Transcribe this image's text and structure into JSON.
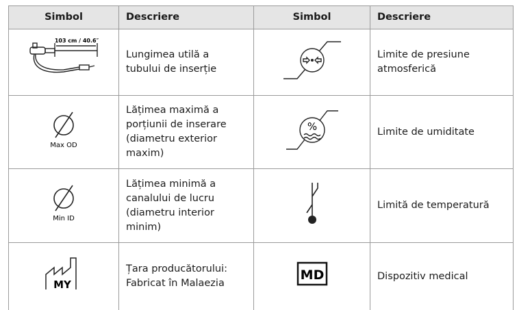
{
  "table": {
    "headers": [
      "Simbol",
      "Descriere",
      "Simbol",
      "Descriere"
    ],
    "rows": [
      {
        "symbol_left_label": "103 cm / 40.6″",
        "description_left": "Lungimea utilă a tubului de inserție",
        "description_right": "Limite de presiune atmosferică"
      },
      {
        "symbol_left_label": "Max OD",
        "description_left": "Lățimea maximă a porțiunii de inserare (diametru exterior maxim)",
        "symbol_right_label": "%",
        "description_right": "Limite de umiditate"
      },
      {
        "symbol_left_label": "Min ID",
        "description_left": "Lățimea minimă a canalului de lucru (diametru interior minim)",
        "description_right": "Limită de temperatură"
      },
      {
        "symbol_left_label": "MY",
        "description_left": "Țara producătorului: Fabricat în Malaezia",
        "symbol_right_label": "MD",
        "description_right": "Dispozitiv medical"
      }
    ]
  }
}
